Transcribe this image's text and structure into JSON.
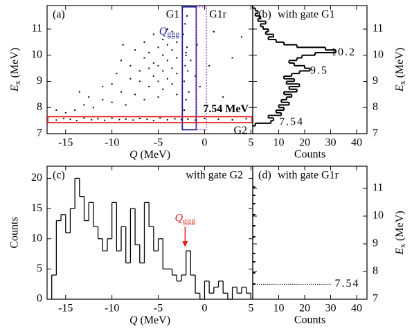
{
  "chart_data": [
    {
      "type": "scatter",
      "title": "(a)",
      "xlabel": {
        "symbol": "Q",
        "unit": "(MeV)"
      },
      "ylabel": {
        "symbol": "E",
        "sub": "x",
        "unit": "(MeV)"
      },
      "y_axis_side": "left",
      "x": [
        -16,
        -15.2,
        -14.5,
        -13.8,
        -13,
        -12.2,
        -11.5,
        -10.8,
        -10,
        -9.2,
        -8.5,
        -7.7,
        -7,
        -6.2,
        -5.5,
        -4.8,
        -4,
        -3.2,
        -2.5,
        -1.8,
        -1,
        0,
        1.5,
        3,
        4.5,
        -14,
        -13,
        -12,
        -12.5,
        -11,
        -11,
        -10,
        -10,
        -9.5,
        -9,
        -9,
        -8.5,
        -8,
        -8,
        -7.5,
        -7.5,
        -7,
        -7,
        -6.5,
        -6.5,
        -6.5,
        -6,
        -6,
        -6,
        -5.5,
        -5.5,
        -5.5,
        -5,
        -5,
        -5,
        -5,
        -4.5,
        -4.5,
        -4.5,
        -4.5,
        -4,
        -4,
        -4,
        -4,
        -3.5,
        -3.5,
        -3.5,
        -3.5,
        -3,
        -3,
        -3,
        -3,
        -2.2,
        -2.1,
        -2,
        -1.9,
        -2.3,
        -1.8,
        -2.0,
        -2.1,
        -1.7,
        -1.5,
        -1,
        -0.8,
        -0.5,
        0.5,
        1,
        2,
        3,
        4,
        -15,
        -16,
        -13.5,
        -8.8,
        -2.2,
        -2.0,
        -1.9
      ],
      "y": [
        7.52,
        7.58,
        7.55,
        7.5,
        7.6,
        7.53,
        7.57,
        7.51,
        7.59,
        7.54,
        7.56,
        7.52,
        7.58,
        7.55,
        7.5,
        7.6,
        7.53,
        7.57,
        7.54,
        7.56,
        7.52,
        7.58,
        7.55,
        7.53,
        7.57,
        7.9,
        8.1,
        8.0,
        8.4,
        8.3,
        8.8,
        8.2,
        8.9,
        9.3,
        8.6,
        9.8,
        8.1,
        9.1,
        9.6,
        8.5,
        10.2,
        9.0,
        9.4,
        8.3,
        9.9,
        10.5,
        8.8,
        9.5,
        10.1,
        9.2,
        9.7,
        10.8,
        8.4,
        9.0,
        9.6,
        10.3,
        9.4,
        10.0,
        10.6,
        8.7,
        9.1,
        9.8,
        10.4,
        11.0,
        8.9,
        9.5,
        10.2,
        10.9,
        9.3,
        9.9,
        10.5,
        8.5,
        9.0,
        9.6,
        10.1,
        10.3,
        10.8,
        9.4,
        10.0,
        11.2,
        8.6,
        9.8,
        9.2,
        10.4,
        8.8,
        9.6,
        10.9,
        8.4,
        9.9,
        10.7,
        7.8,
        7.9,
        8.6,
        10.4,
        7.9,
        8.3,
        11.5
      ],
      "color": "#000000",
      "xlim": [
        -17,
        5.2
      ],
      "ylim": [
        7,
        11.9
      ],
      "xticks": [
        -15,
        -10,
        -5,
        0,
        5
      ],
      "yticks": [
        7,
        8,
        9,
        10,
        11
      ],
      "gates": [
        {
          "name": "G1",
          "xlim": [
            -2.4,
            -0.9
          ],
          "ylim": [
            7.15,
            11.85
          ],
          "color": "#1c1c9c",
          "dashed": false
        },
        {
          "name": "G1r",
          "xlim": [
            -0.9,
            0.2
          ],
          "ylim": [
            7.15,
            11.85
          ],
          "color": "#9a30d6",
          "dashed": true
        },
        {
          "name": "G2",
          "xlim": [
            -17,
            5.2
          ],
          "ylim": [
            7.42,
            7.65
          ],
          "color": "#e02020",
          "dashed": false
        }
      ],
      "qggg": {
        "symbol": "Q",
        "sub": "ggg",
        "color": "#1c1c9c"
      },
      "g2_label": "7.54 MeV"
    },
    {
      "type": "histogram",
      "orientation": "horizontal",
      "title": "(b)",
      "subtitle": "with gate G1",
      "subtitle_color": "#1c1cd0",
      "xlabel": "Counts",
      "ylabel": {
        "symbol": "E",
        "sub": "x",
        "unit": "(MeV)"
      },
      "y_axis_side": "right",
      "bins": [
        7.3,
        7.4,
        7.5,
        7.6,
        7.7,
        7.8,
        7.9,
        8.0,
        8.1,
        8.2,
        8.3,
        8.4,
        8.5,
        8.6,
        8.7,
        8.8,
        8.9,
        9.0,
        9.1,
        9.2,
        9.3,
        9.4,
        9.5,
        9.6,
        9.7,
        9.8,
        9.9,
        10.0,
        10.1,
        10.2,
        10.3,
        10.4,
        10.5,
        10.6,
        10.7,
        10.8,
        10.9,
        11.0,
        11.1,
        11.2,
        11.3,
        11.4,
        11.5,
        11.6,
        11.7,
        11.8,
        11.9
      ],
      "values": [
        1,
        7,
        8,
        6,
        11,
        9,
        12,
        10,
        14,
        11,
        13,
        15,
        12,
        17,
        14,
        18,
        13,
        16,
        12,
        15,
        18,
        22,
        20,
        16,
        14,
        17,
        19,
        24,
        32,
        28,
        17,
        12,
        9,
        6,
        8,
        5,
        6,
        4,
        3,
        5,
        2,
        3,
        1,
        2,
        1,
        0
      ],
      "color": "#000000",
      "xlim": [
        0,
        44
      ],
      "ylim": [
        7,
        11.9
      ],
      "xticks": [
        10,
        20,
        30,
        40
      ],
      "yticks": [
        7,
        8,
        9,
        10,
        11
      ],
      "peak_labels": [
        {
          "value": 10.2,
          "label": "10.2"
        },
        {
          "value": 9.5,
          "label": "9.5"
        },
        {
          "value": 7.54,
          "label": "7.54"
        }
      ]
    },
    {
      "type": "histogram",
      "orientation": "vertical",
      "title": "(c)",
      "subtitle": "with gate G2",
      "subtitle_color": "#e02020",
      "xlabel": {
        "symbol": "Q",
        "unit": "(MeV)"
      },
      "ylabel": "Counts",
      "y_axis_side": "left",
      "bins": [
        -16.5,
        -16,
        -15.5,
        -15,
        -14.5,
        -14,
        -13.5,
        -13,
        -12.5,
        -12,
        -11.5,
        -11,
        -10.5,
        -10,
        -9.5,
        -9,
        -8.5,
        -8,
        -7.5,
        -7,
        -6.5,
        -6,
        -5.5,
        -5,
        -4.5,
        -4,
        -3.5,
        -3,
        -2.5,
        -2,
        -1.5,
        -1,
        -0.5,
        0,
        0.5,
        1,
        1.5,
        2,
        2.5,
        3,
        3.5,
        4,
        4.5,
        5
      ],
      "values": [
        4,
        13,
        14,
        11,
        15,
        20,
        17,
        13,
        16,
        12,
        10,
        8,
        10,
        16,
        8,
        12,
        6,
        15,
        9,
        6,
        16,
        12,
        8,
        10,
        5,
        5,
        4,
        3,
        4,
        8,
        4,
        1,
        0,
        3,
        1,
        2,
        3,
        1,
        0,
        2,
        1,
        2,
        1
      ],
      "color": "#000000",
      "xlim": [
        -17,
        5.2
      ],
      "ylim": [
        0,
        22
      ],
      "xticks": [
        -15,
        -10,
        -5,
        0,
        5
      ],
      "yticks": [
        0,
        5,
        10,
        15,
        20
      ],
      "qggg": {
        "symbol": "Q",
        "sub": "ggg",
        "color": "#e02020"
      },
      "arrow": {
        "x": -2.1,
        "y_from": 12,
        "y_to": 8.6
      }
    },
    {
      "type": "spikes",
      "title": "(d)",
      "subtitle": "with gate G1r",
      "subtitle_color": "#9a30d6",
      "xlabel": "Counts",
      "ylabel": {
        "symbol": "E",
        "sub": "x",
        "unit": "(MeV)"
      },
      "y_axis_side": "right",
      "y": [
        7.55,
        7.95,
        8.35,
        8.65,
        9.25,
        9.65,
        10.05,
        10.45,
        10.75,
        11.05
      ],
      "values": [
        1,
        1,
        1,
        1,
        1,
        1,
        1,
        1,
        1,
        1
      ],
      "color": "#000000",
      "xlim": [
        0,
        44
      ],
      "ylim": [
        7,
        11.8
      ],
      "xticks": [
        10,
        20,
        30,
        40
      ],
      "yticks": [
        7,
        8,
        9,
        10,
        11
      ],
      "marker_line": {
        "y": 7.54,
        "x_end": 30,
        "label": "7.54"
      }
    }
  ]
}
